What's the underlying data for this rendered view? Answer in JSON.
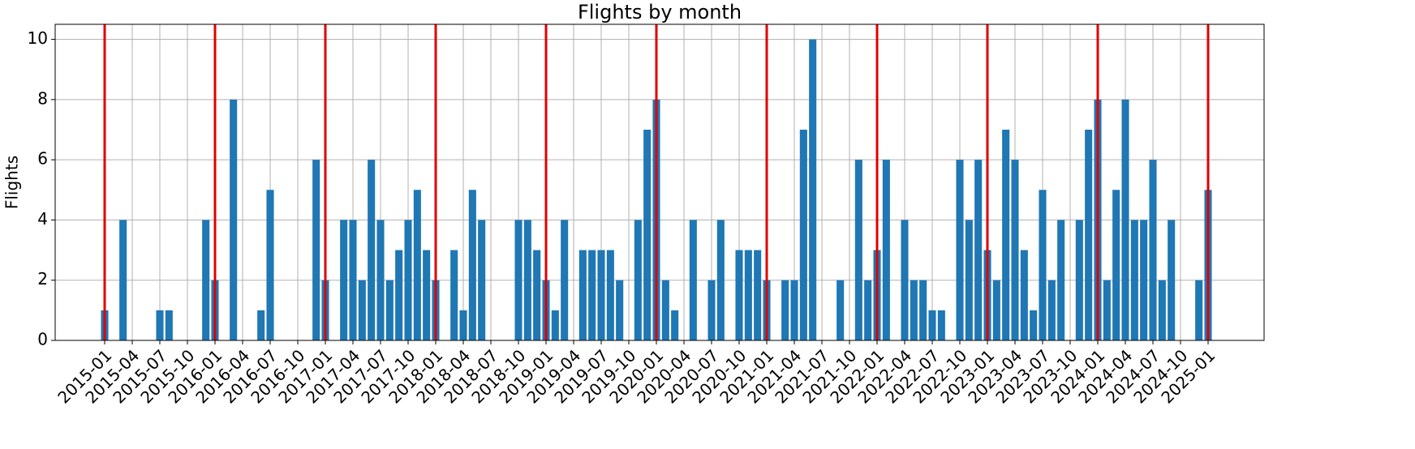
{
  "chart_data": {
    "type": "bar",
    "title": "Flights by month",
    "ylabel": "Flights",
    "categories": [
      "2015-01",
      null,
      null,
      "2015-04",
      null,
      null,
      "2015-07",
      null,
      null,
      "2015-10",
      null,
      null,
      "2016-01",
      null,
      null,
      "2016-04",
      null,
      null,
      "2016-07",
      null,
      null,
      "2016-10",
      null,
      null,
      "2017-01",
      null,
      null,
      "2017-04",
      null,
      null,
      "2017-07",
      null,
      null,
      "2017-10",
      null,
      null,
      "2018-01",
      null,
      null,
      "2018-04",
      null,
      null,
      "2018-07",
      null,
      null,
      "2018-10",
      null,
      null,
      "2019-01",
      null,
      null,
      "2019-04",
      null,
      null,
      "2019-07",
      null,
      null,
      "2019-10",
      null,
      null,
      "2020-01",
      null,
      null,
      "2020-04",
      null,
      null,
      "2020-07",
      null,
      null,
      "2020-10",
      null,
      null,
      "2021-01",
      null,
      null,
      "2021-04",
      null,
      null,
      "2021-07",
      null,
      null,
      "2021-10",
      null,
      null,
      "2022-01",
      null,
      null,
      "2022-04",
      null,
      null,
      "2022-07",
      null,
      null,
      "2022-10",
      null,
      null,
      "2023-01",
      null,
      null,
      "2023-04",
      null,
      null,
      "2023-07",
      null,
      null,
      "2023-10",
      null,
      null,
      "2024-01",
      null,
      null,
      "2024-04",
      null,
      null,
      "2024-07",
      null,
      null,
      "2024-10",
      null,
      null,
      "2025-01"
    ],
    "values": [
      1,
      0,
      4,
      0,
      0,
      0,
      1,
      1,
      0,
      0,
      0,
      4,
      2,
      0,
      8,
      0,
      0,
      1,
      5,
      0,
      0,
      0,
      0,
      6,
      2,
      0,
      4,
      4,
      2,
      6,
      4,
      2,
      3,
      4,
      5,
      3,
      2,
      0,
      3,
      1,
      5,
      4,
      0,
      0,
      0,
      4,
      4,
      3,
      2,
      1,
      4,
      0,
      3,
      3,
      3,
      3,
      2,
      0,
      4,
      7,
      8,
      2,
      1,
      0,
      4,
      0,
      2,
      4,
      0,
      3,
      3,
      3,
      2,
      0,
      2,
      2,
      7,
      10,
      0,
      0,
      2,
      0,
      6,
      2,
      3,
      6,
      0,
      4,
      2,
      2,
      1,
      1,
      0,
      6,
      4,
      6,
      3,
      2,
      7,
      6,
      3,
      1,
      5,
      2,
      4,
      0,
      4,
      7,
      8,
      2,
      5,
      8,
      4,
      4,
      6,
      2,
      4,
      0,
      0,
      2,
      5
    ],
    "color": "#1f77b4",
    "vlines": [
      0,
      12,
      24,
      36,
      48,
      60,
      72,
      84,
      96,
      108,
      120
    ],
    "vline_color": "#e00000",
    "ylim": [
      0,
      10.5
    ],
    "yticks": [
      0,
      2,
      4,
      6,
      8,
      10
    ],
    "grid": true
  }
}
